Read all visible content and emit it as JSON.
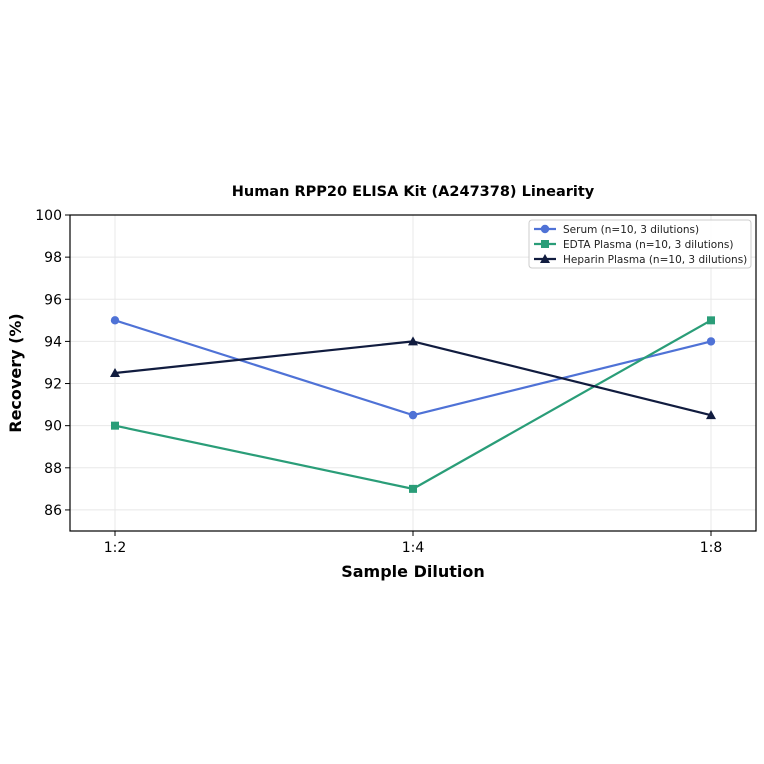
{
  "chart_data": {
    "type": "line",
    "title": "Human RPP20 ELISA Kit (A247378) Linearity",
    "xlabel": "Sample Dilution",
    "ylabel": "Recovery (%)",
    "categories": [
      "1:2",
      "1:4",
      "1:8"
    ],
    "ylim": [
      85,
      100
    ],
    "yticks": [
      86,
      88,
      90,
      92,
      94,
      96,
      98,
      100
    ],
    "grid": true,
    "legend_position": "top-right",
    "series": [
      {
        "name": "Serum (n=10, 3 dilutions)",
        "values": [
          95.0,
          90.5,
          94.0
        ],
        "color": "#4f72d6",
        "marker": "circle"
      },
      {
        "name": "EDTA Plasma (n=10, 3 dilutions)",
        "values": [
          90.0,
          87.0,
          95.0
        ],
        "color": "#2a9d78",
        "marker": "square"
      },
      {
        "name": "Heparin Plasma (n=10, 3 dilutions)",
        "values": [
          92.5,
          94.0,
          90.5
        ],
        "color": "#111c3f",
        "marker": "triangle"
      }
    ]
  }
}
